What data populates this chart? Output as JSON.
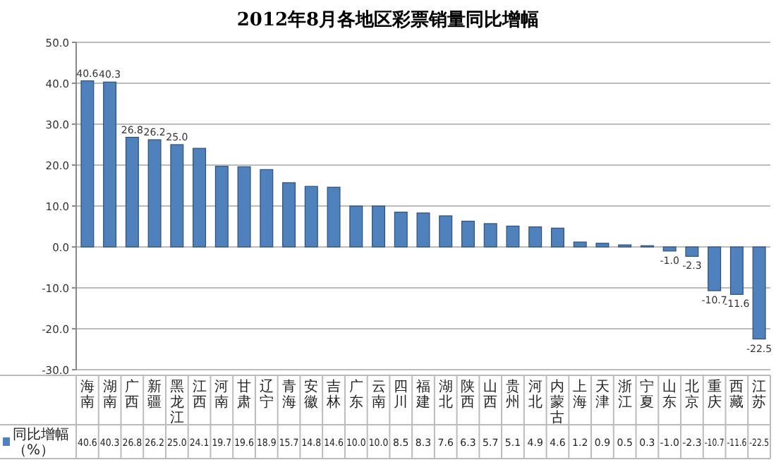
{
  "chart_data": {
    "type": "bar",
    "title": "2012年8月各地区彩票销量同比增幅",
    "categories": [
      "海南",
      "湖南",
      "广西",
      "新疆",
      "黑龙江",
      "江西",
      "河南",
      "甘肃",
      "辽宁",
      "青海",
      "安徽",
      "吉林",
      "广东",
      "云南",
      "四川",
      "福建",
      "湖北",
      "陕西",
      "山西",
      "贵州",
      "河北",
      "内蒙古",
      "上海",
      "天津",
      "浙江",
      "宁夏",
      "山东",
      "北京",
      "重庆",
      "西藏",
      "江苏"
    ],
    "series": [
      {
        "name": "同比增幅（%）",
        "color": "#4f81bd",
        "values": [
          40.6,
          40.3,
          26.8,
          26.2,
          25.0,
          24.1,
          19.7,
          19.6,
          18.9,
          15.7,
          14.8,
          14.6,
          10.0,
          10.0,
          8.5,
          8.3,
          7.6,
          6.3,
          5.7,
          5.1,
          4.9,
          4.6,
          1.2,
          0.9,
          0.5,
          0.3,
          -1.0,
          -2.3,
          -10.7,
          -11.6,
          -22.5
        ],
        "value_labels": [
          "40.6",
          "40.3",
          "26.8",
          "26.2",
          "25.0",
          "24.1",
          "19.7",
          "19.6",
          "18.9",
          "15.7",
          "14.8",
          "14.6",
          "10.0",
          "10.0",
          "8.5",
          "8.3",
          "7.6",
          "6.3",
          "5.7",
          "5.1",
          "4.9",
          "4.6",
          "1.2",
          "0.9",
          "0.5",
          "0.3",
          "-1.0",
          "-2.3",
          "-10.7",
          "-11.6",
          "-22.5"
        ]
      }
    ],
    "annotations": [
      {
        "text": "40.6",
        "x": "海南",
        "y": 40.6
      },
      {
        "text": "40.3",
        "x": "湖南",
        "y": 40.3
      },
      {
        "text": "26.8",
        "x": "广西",
        "y": 26.8
      },
      {
        "text": "26.2",
        "x": "新疆",
        "y": 26.2
      },
      {
        "text": "25.0",
        "x": "黑龙江",
        "y": 25.0
      },
      {
        "text": "-1.0",
        "x": "山东",
        "y": -1.0
      },
      {
        "text": "-2.3",
        "x": "北京",
        "y": -2.3
      },
      {
        "text": "-10.7",
        "x": "重庆",
        "y": -10.7
      },
      {
        "text": "-11.6",
        "x": "西藏",
        "y": -11.6
      },
      {
        "text": "-22.5",
        "x": "江苏",
        "y": -22.5
      }
    ],
    "ylim": [
      -30,
      50
    ],
    "yticks": [
      {
        "value": -30,
        "label": "-30.0"
      },
      {
        "value": -20,
        "label": "-20.0"
      },
      {
        "value": -10,
        "label": "-10.0"
      },
      {
        "value": 0,
        "label": "0.0"
      },
      {
        "value": 10,
        "label": "10.0"
      },
      {
        "value": 20,
        "label": "20.0"
      },
      {
        "value": 30,
        "label": "30.0"
      },
      {
        "value": 40,
        "label": "40.0"
      },
      {
        "value": 50,
        "label": "50.0"
      }
    ],
    "grid": "y",
    "legend": "bottom left"
  }
}
